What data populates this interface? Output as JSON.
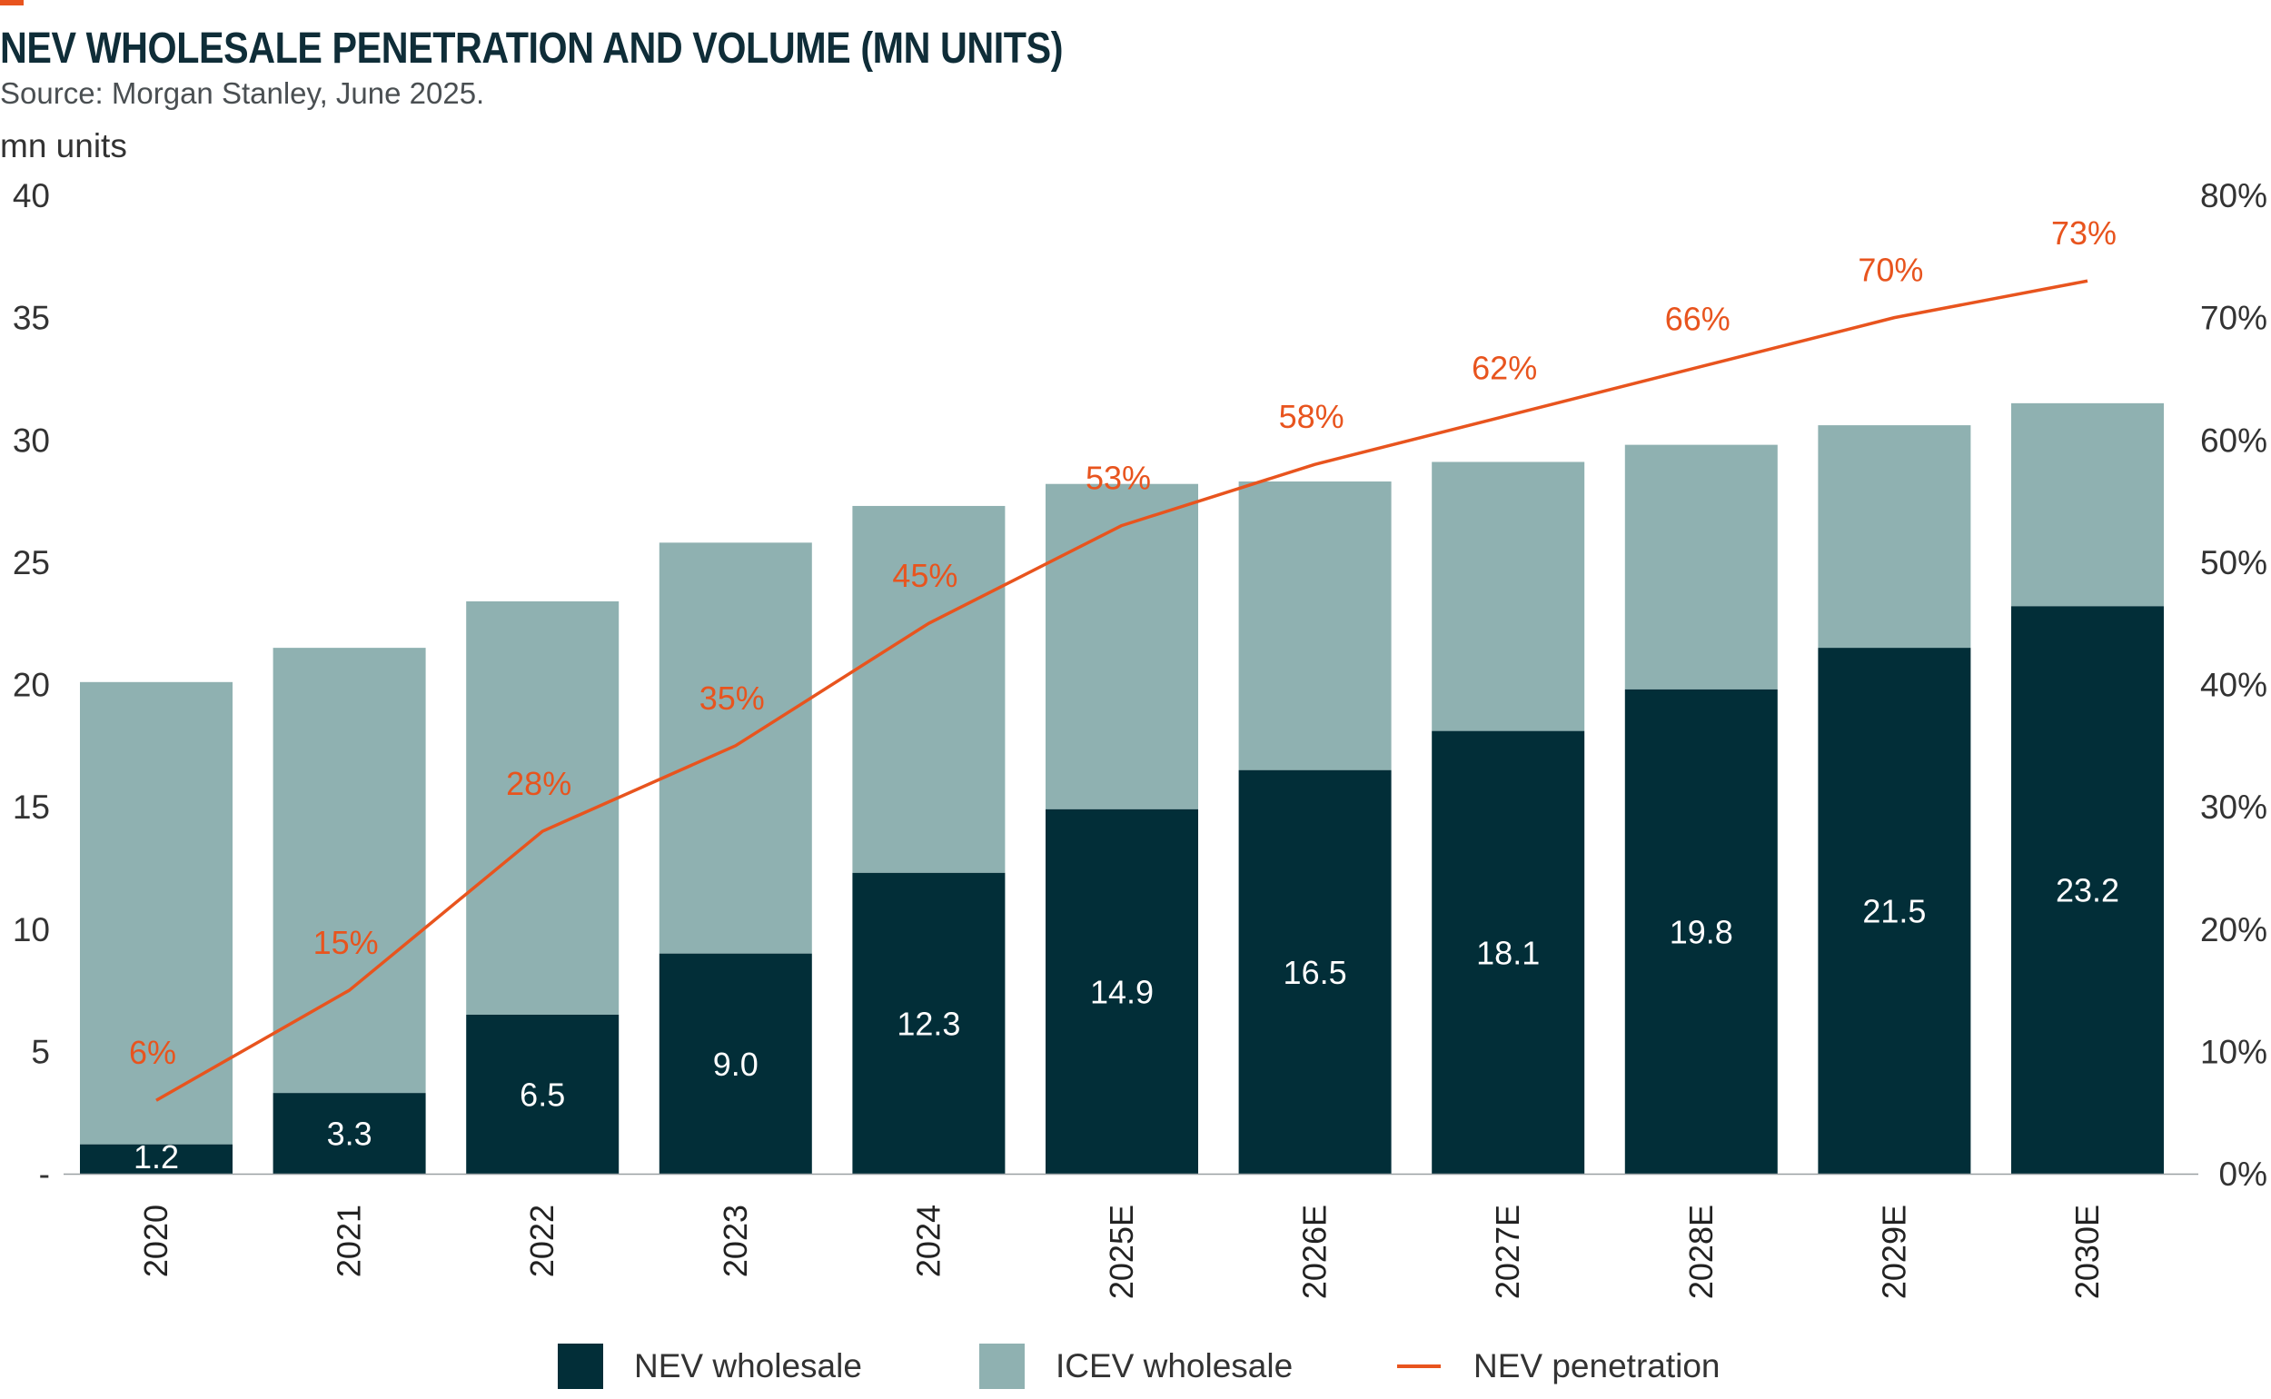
{
  "header": {
    "title": "NEV WHOLESALE PENETRATION AND VOLUME (MN UNITS)",
    "source": "Source: Morgan Stanley, June 2025.",
    "unit_label": "mn units"
  },
  "colors": {
    "accent": "#e8541e",
    "nev": "#022e38",
    "icev": "#8fb1b1",
    "title": "#0f2d38"
  },
  "legend": {
    "nev": "NEV wholesale",
    "icev": "ICEV wholesale",
    "penetration": "NEV penetration"
  },
  "chart_data": {
    "type": "bar",
    "stacked": true,
    "title": "NEV WHOLESALE PENETRATION AND VOLUME (MN UNITS)",
    "ylabel": "mn units",
    "categories": [
      "2020",
      "2021",
      "2022",
      "2023",
      "2024",
      "2025E",
      "2026E",
      "2027E",
      "2028E",
      "2029E",
      "2030E"
    ],
    "series": [
      {
        "name": "NEV wholesale",
        "type": "bar",
        "axis": "left",
        "values": [
          1.2,
          3.3,
          6.5,
          9.0,
          12.3,
          14.9,
          16.5,
          18.1,
          19.8,
          21.5,
          23.2
        ],
        "labels": [
          "1.2",
          "3.3",
          "6.5",
          "9.0",
          "12.3",
          "14.9",
          "16.5",
          "18.1",
          "19.8",
          "21.5",
          "23.2"
        ]
      },
      {
        "name": "ICEV wholesale",
        "type": "bar",
        "axis": "left",
        "values": [
          18.9,
          18.2,
          16.9,
          16.8,
          15.0,
          13.3,
          11.8,
          11.0,
          10.0,
          9.1,
          8.3
        ]
      },
      {
        "name": "NEV penetration",
        "type": "line",
        "axis": "right",
        "values": [
          6,
          15,
          28,
          35,
          45,
          53,
          58,
          62,
          66,
          70,
          73
        ],
        "labels": [
          "6%",
          "15%",
          "28%",
          "35%",
          "45%",
          "53%",
          "58%",
          "62%",
          "66%",
          "70%",
          "73%"
        ]
      }
    ],
    "y_left": {
      "range": [
        0,
        40
      ],
      "ticks": [
        "-",
        "5",
        "10",
        "15",
        "20",
        "25",
        "30",
        "35",
        "40"
      ]
    },
    "y_right": {
      "range": [
        0,
        80
      ],
      "ticks": [
        "0%",
        "10%",
        "20%",
        "30%",
        "40%",
        "50%",
        "60%",
        "70%",
        "80%"
      ]
    },
    "grid": false,
    "legend_position": "bottom-center"
  }
}
